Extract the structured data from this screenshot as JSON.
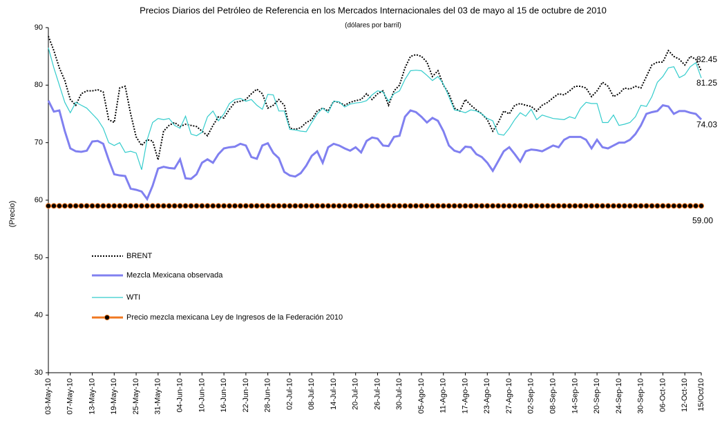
{
  "chart_data": {
    "type": "line",
    "title": "Precios Diarios del Petróleo de Referencia en los Mercados Internacionales del 03 de mayo al 15 de octubre de 2010",
    "subtitle": "(dólares por barril)",
    "y_label": "(Precio)",
    "ylim": [
      30,
      90
    ],
    "yticks": [
      30,
      40,
      50,
      60,
      70,
      80,
      90
    ],
    "grid": false,
    "categories": [
      "03-May-10",
      null,
      null,
      null,
      "07-May-10",
      null,
      null,
      null,
      "13-May-10",
      null,
      null,
      null,
      "19-May-10",
      null,
      null,
      null,
      "25-May-10",
      null,
      null,
      null,
      "31-May-10",
      null,
      null,
      null,
      "04-Jun-10",
      null,
      null,
      null,
      "10-Jun-10",
      null,
      null,
      null,
      "16-Jun-10",
      null,
      null,
      null,
      "22-Jun-10",
      null,
      null,
      null,
      "28-Jun-10",
      null,
      null,
      null,
      "02-Jul-10",
      null,
      null,
      null,
      "08-Jul-10",
      null,
      null,
      null,
      "14-Jul-10",
      null,
      null,
      null,
      "20-Jul-10",
      null,
      null,
      null,
      "26-Jul-10",
      null,
      null,
      null,
      "30-Jul-10",
      null,
      null,
      null,
      "05-Ago-10",
      null,
      null,
      null,
      "11-Ago-10",
      null,
      null,
      null,
      "17-Ago-10",
      null,
      null,
      null,
      "23-Ago-10",
      null,
      null,
      null,
      "27-Ago-10",
      null,
      null,
      null,
      "02-Sep-10",
      null,
      null,
      null,
      "08-Sep-10",
      null,
      null,
      null,
      "14-Sep-10",
      null,
      null,
      null,
      "20-Sep-10",
      null,
      null,
      null,
      "24-Sep-10",
      null,
      null,
      null,
      "30-Sep-10",
      null,
      null,
      null,
      "06-Oct-10",
      null,
      null,
      null,
      "12-Oct-10",
      null,
      null,
      "15/Oct/10"
    ],
    "series": [
      {
        "name": "BRENT",
        "color": "#000000",
        "dashed": true,
        "width": 2,
        "marker": false,
        "values": [
          88.5,
          86,
          83,
          80.8,
          77.5,
          76.5,
          78.5,
          79,
          79,
          79.2,
          78.8,
          74,
          73.5,
          79.5,
          79.8,
          75,
          71,
          69.5,
          70.5,
          70.3,
          67,
          72,
          73,
          73.5,
          72.8,
          73.2,
          73,
          72.8,
          72,
          71.2,
          73,
          74.5,
          74.3,
          75.8,
          77,
          77.2,
          77.5,
          78.5,
          79.3,
          78.5,
          76,
          76.5,
          77.5,
          76.5,
          72.5,
          72.3,
          72.6,
          73.5,
          74,
          75.5,
          76,
          75.5,
          77.2,
          77,
          76.5,
          77,
          77.3,
          77.5,
          78.5,
          77.5,
          78.5,
          79,
          76.5,
          79,
          80,
          83,
          85,
          85.3,
          85,
          84,
          81.5,
          82.5,
          80,
          78.5,
          76,
          75.5,
          77.5,
          76.5,
          75.7,
          75,
          74,
          72,
          73.5,
          75.5,
          75,
          76.5,
          76.8,
          76.5,
          76.3,
          75.5,
          76.5,
          77,
          77.8,
          78.5,
          78.3,
          79,
          79.8,
          79.8,
          79.5,
          78,
          79,
          80.5,
          79.8,
          78,
          78.5,
          79.5,
          79.3,
          79.8,
          79.5,
          81.5,
          83.5,
          84,
          84,
          86,
          85,
          84.5,
          83.5,
          85,
          84.5,
          82.45
        ]
      },
      {
        "name": "Mezcla Mexicana observada",
        "color": "#8080f0",
        "dashed": false,
        "width": 3,
        "marker": false,
        "values": [
          77.3,
          75.4,
          75.6,
          72,
          69,
          68.5,
          68.4,
          68.6,
          70.2,
          70.3,
          69.8,
          67,
          64.5,
          64.3,
          64.2,
          62,
          61.8,
          61.5,
          60.2,
          62.5,
          65.5,
          65.8,
          65.6,
          65.5,
          67.1,
          63.8,
          63.7,
          64.5,
          66.5,
          67.1,
          66.5,
          68,
          69,
          69.2,
          69.3,
          69.8,
          69.5,
          67.5,
          67.2,
          69.5,
          69.9,
          68.2,
          67.3,
          64.9,
          64.3,
          64.1,
          64.7,
          66,
          67.7,
          68.5,
          66.5,
          69.2,
          69.8,
          69.5,
          69,
          68.6,
          69.2,
          68.3,
          70.3,
          70.9,
          70.7,
          69.5,
          69.4,
          71,
          71.2,
          74.5,
          75.6,
          75.3,
          74.5,
          73.5,
          74.3,
          73.8,
          72,
          69.5,
          68.6,
          68.3,
          69.3,
          69.2,
          68,
          67.5,
          66.5,
          65.1,
          66.8,
          68.5,
          69.2,
          68,
          66.7,
          68.5,
          68.8,
          68.7,
          68.5,
          69,
          69.5,
          69.2,
          70.5,
          71,
          71,
          71,
          70.5,
          69,
          70.5,
          69.2,
          69,
          69.5,
          70,
          70,
          70.5,
          71.5,
          73,
          75,
          75.3,
          75.5,
          76.5,
          76.3,
          75,
          75.5,
          75.5,
          75.2,
          75,
          74.03
        ]
      },
      {
        "name": "WTI",
        "color": "#33cccc",
        "dashed": false,
        "width": 1.2,
        "marker": false,
        "values": [
          86.5,
          83,
          80,
          77,
          75.2,
          77,
          76.5,
          76,
          75,
          74,
          72.5,
          70,
          69.5,
          70,
          68.3,
          68.5,
          68.2,
          65.3,
          70.5,
          73.5,
          74.2,
          74,
          74.2,
          73,
          72.5,
          74.6,
          71.5,
          71.2,
          71.8,
          74.5,
          75.5,
          73.8,
          75,
          76.8,
          77.5,
          77.7,
          77.2,
          77.5,
          76.5,
          75.8,
          78.4,
          78.3,
          75.5,
          75.5,
          72.3,
          72.2,
          72,
          71.9,
          73.5,
          75,
          76,
          75.2,
          77.2,
          77.1,
          76.2,
          76.7,
          76.9,
          77,
          77.3,
          78.3,
          79,
          78.8,
          77.2,
          78.5,
          79,
          81,
          82.5,
          82.6,
          82.5,
          81.7,
          80.8,
          81.5,
          80.2,
          78,
          75.7,
          75.5,
          75.2,
          75.7,
          75.5,
          75,
          74.2,
          73.8,
          71.5,
          71.3,
          72.5,
          74,
          75.2,
          74.6,
          75.8,
          74,
          74.8,
          74.5,
          74.2,
          74.1,
          74,
          74.5,
          74.2,
          76,
          77,
          76.8,
          76.8,
          73.5,
          73.5,
          74.8,
          73,
          73.2,
          73.5,
          74.5,
          76.5,
          76.3,
          78,
          80.5,
          81.5,
          83,
          83.2,
          81.3,
          81.8,
          83.2,
          83.9,
          81.25
        ]
      },
      {
        "name": "Precio mezcla mexicana Ley de Ingresos de la Federación 2010",
        "color": "#f07820",
        "dashed": false,
        "width": 3,
        "marker": true,
        "values": [
          59,
          59,
          59,
          59,
          59,
          59,
          59,
          59,
          59,
          59,
          59,
          59,
          59,
          59,
          59,
          59,
          59,
          59,
          59,
          59,
          59,
          59,
          59,
          59,
          59,
          59,
          59,
          59,
          59,
          59,
          59,
          59,
          59,
          59,
          59,
          59,
          59,
          59,
          59,
          59,
          59,
          59,
          59,
          59,
          59,
          59,
          59,
          59,
          59,
          59,
          59,
          59,
          59,
          59,
          59,
          59,
          59,
          59,
          59,
          59,
          59,
          59,
          59,
          59,
          59,
          59,
          59,
          59,
          59,
          59,
          59,
          59,
          59,
          59,
          59,
          59,
          59,
          59,
          59,
          59,
          59,
          59,
          59,
          59,
          59,
          59,
          59,
          59,
          59,
          59,
          59,
          59,
          59,
          59,
          59,
          59,
          59,
          59,
          59,
          59,
          59,
          59,
          59,
          59,
          59,
          59,
          59,
          59,
          59,
          59,
          59,
          59,
          59,
          59,
          59,
          59,
          59,
          59,
          59,
          59
        ],
        "value_labels": {
          "119": "59.00"
        }
      }
    ]
  }
}
